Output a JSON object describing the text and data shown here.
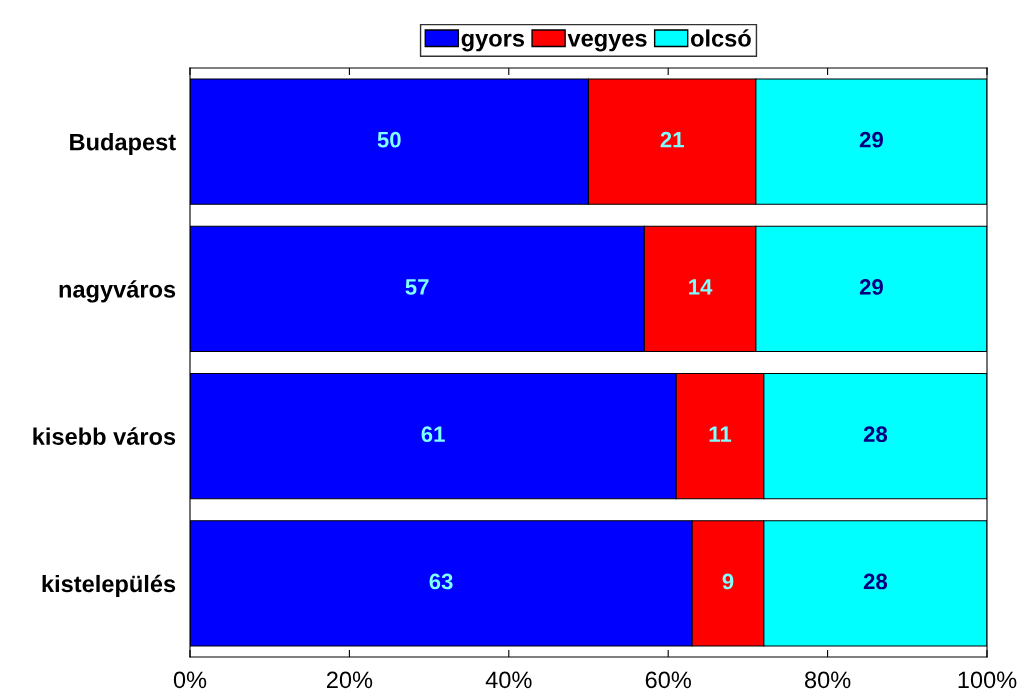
{
  "chart_data": {
    "type": "bar",
    "orientation": "horizontal",
    "stacked": true,
    "categories": [
      "Budapest",
      "nagyváros",
      "kisebb város",
      "kistelepülés"
    ],
    "series": [
      {
        "name": "gyors",
        "color": "#0000ff",
        "values": [
          50,
          57,
          61,
          63
        ]
      },
      {
        "name": "vegyes",
        "color": "#ff0000",
        "values": [
          21,
          14,
          11,
          9
        ]
      },
      {
        "name": "olcsó",
        "color": "#00ffff",
        "values": [
          29,
          29,
          28,
          28
        ]
      }
    ],
    "xlim": [
      0,
      100
    ],
    "xticks": [
      {
        "value": 0,
        "label": "0%"
      },
      {
        "value": 20,
        "label": "20%"
      },
      {
        "value": 40,
        "label": "40%"
      },
      {
        "value": 60,
        "label": "60%"
      },
      {
        "value": 80,
        "label": "80%"
      },
      {
        "value": 100,
        "label": "100%"
      }
    ],
    "data_labels": true,
    "legend": "top",
    "grid": false
  }
}
